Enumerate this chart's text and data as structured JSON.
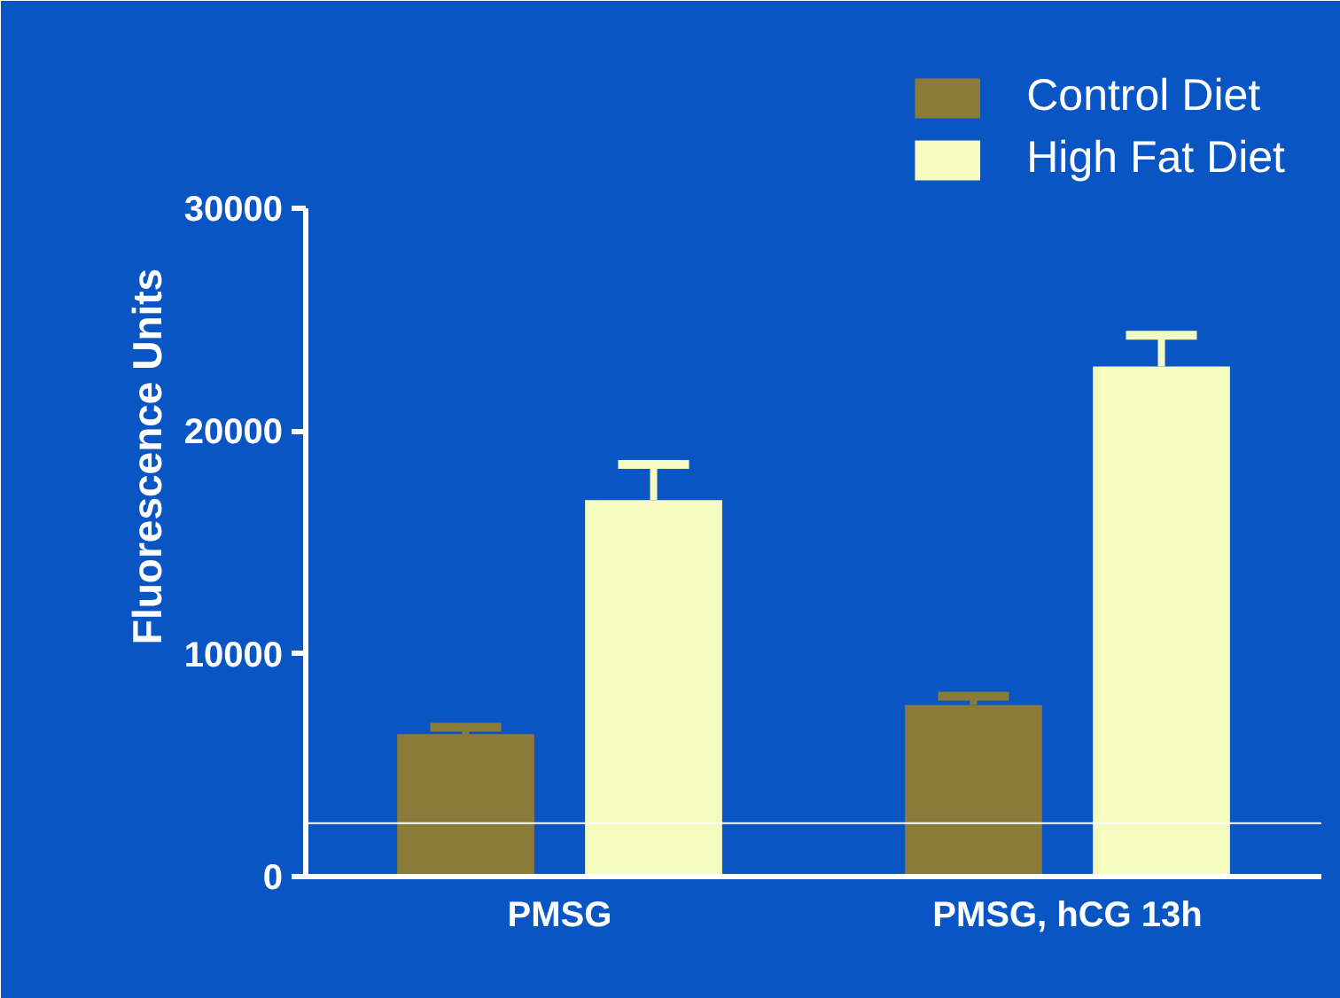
{
  "chart_data": {
    "type": "bar",
    "ylabel": "Fluorescence Units",
    "categories": [
      "PMSG",
      "PMSG, hCG 13h"
    ],
    "series": [
      {
        "name": "Control Diet",
        "color": "#8b7b38",
        "values": [
          6400,
          7700
        ],
        "errors": [
          [
            6400,
            6700
          ],
          [
            7700,
            8100
          ]
        ]
      },
      {
        "name": "High Fat Diet",
        "color": "#f5fcc0",
        "values": [
          16900,
          22900
        ],
        "errors": [
          [
            16900,
            18500
          ],
          [
            22900,
            24300
          ]
        ]
      }
    ],
    "ylim": [
      0,
      30000
    ],
    "yticks": [
      0,
      10000,
      20000,
      30000
    ],
    "grid": false,
    "legend": "top right",
    "ref_lines": [
      {
        "axis": "y",
        "value": 2400,
        "color": "#ffffff"
      }
    ]
  }
}
